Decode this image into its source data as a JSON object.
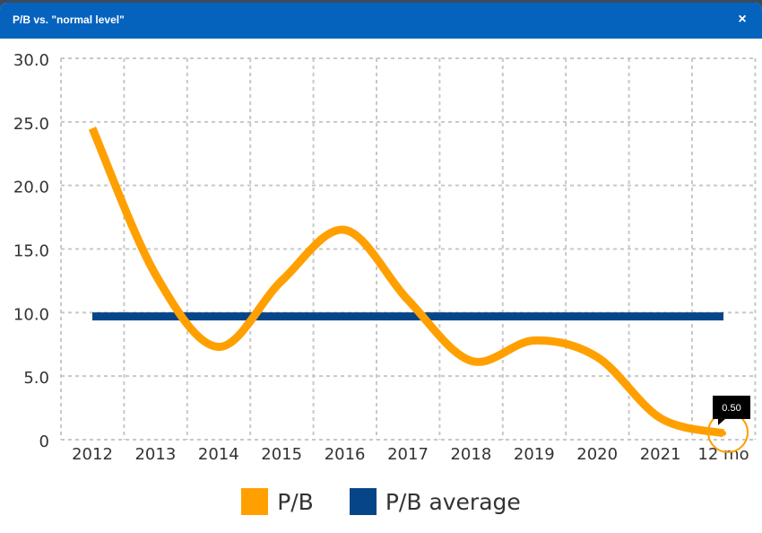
{
  "window": {
    "title": "P/B vs. \"normal level\"",
    "close_glyph": "×"
  },
  "colors": {
    "titlebar": "#0563bd",
    "pb": "#ffa000",
    "average": "#064588"
  },
  "legend": {
    "pb_label": "P/B",
    "average_label": "P/B average"
  },
  "tooltip": {
    "value_label": "0.50"
  },
  "chart_data": {
    "type": "line",
    "categories": [
      "2012",
      "2013",
      "2014",
      "2015",
      "2016",
      "2017",
      "2018",
      "2019",
      "2020",
      "2021",
      "12 mo"
    ],
    "y_tick_labels": [
      "0",
      "5.0",
      "10.0",
      "15.0",
      "20.0",
      "25.0",
      "30.0"
    ],
    "ylim": [
      0,
      30
    ],
    "grid": true,
    "series": [
      {
        "name": "P/B",
        "values": [
          24.5,
          13.0,
          7.3,
          12.5,
          16.5,
          11.0,
          6.2,
          7.8,
          6.5,
          1.7,
          0.5
        ]
      },
      {
        "name": "P/B average",
        "values": [
          9.7,
          9.7,
          9.7,
          9.7,
          9.7,
          9.7,
          9.7,
          9.7,
          9.7,
          9.7,
          9.7
        ]
      }
    ],
    "legend_position": "bottom"
  }
}
